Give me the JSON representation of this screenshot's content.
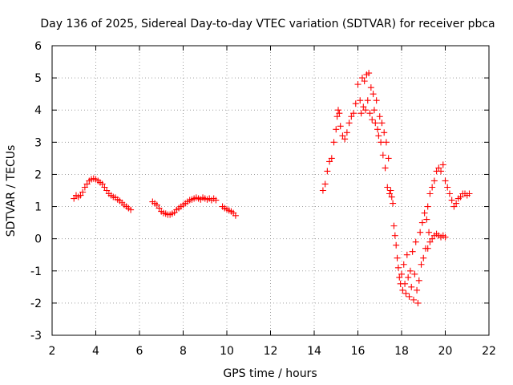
{
  "chart_data": {
    "type": "scatter",
    "title": "Day 136 of 2025, Sidereal Day-to-day VTEC variation (SDTVAR) for receiver pbca",
    "xlabel": "GPS time / hours",
    "ylabel": "SDTVAR / TECUs",
    "xlim": [
      2,
      22
    ],
    "ylim": [
      -3,
      6
    ],
    "xticks": [
      2,
      4,
      6,
      8,
      10,
      12,
      14,
      16,
      18,
      20,
      22
    ],
    "yticks": [
      -3,
      -2,
      -1,
      0,
      1,
      2,
      3,
      4,
      5,
      6
    ],
    "xtick_labels": [
      "2",
      "4",
      "6",
      "8",
      "10",
      "12",
      "14",
      "16",
      "18",
      "20",
      "22"
    ],
    "ytick_labels": [
      "-3",
      "-2",
      "-1",
      "0",
      "1",
      "2",
      "3",
      "4",
      "5",
      "6"
    ],
    "grid": true,
    "marker": "plus",
    "series": [
      {
        "name": "SDTVAR",
        "color": "#ff0000",
        "segments": [
          {
            "x": [
              3.0,
              3.1,
              3.2,
              3.3,
              3.4,
              3.5,
              3.6,
              3.7,
              3.8,
              3.9,
              4.0,
              4.1,
              4.2,
              4.3,
              4.4,
              4.5,
              4.6,
              4.7,
              4.8,
              4.9,
              5.0,
              5.1,
              5.2,
              5.3,
              5.4,
              5.5,
              5.6
            ],
            "y": [
              1.25,
              1.35,
              1.3,
              1.35,
              1.45,
              1.6,
              1.7,
              1.8,
              1.85,
              1.87,
              1.85,
              1.8,
              1.75,
              1.7,
              1.6,
              1.5,
              1.4,
              1.35,
              1.3,
              1.28,
              1.22,
              1.18,
              1.12,
              1.05,
              1.0,
              0.95,
              0.9
            ]
          },
          {
            "x": [
              6.6,
              6.7,
              6.8,
              6.9,
              7.0,
              7.1,
              7.2,
              7.3,
              7.4,
              7.5,
              7.6,
              7.7,
              7.8,
              7.9,
              8.0,
              8.1,
              8.2,
              8.3,
              8.4,
              8.5,
              8.6,
              8.7,
              8.8,
              8.9,
              9.0,
              9.1,
              9.2,
              9.3,
              9.4,
              9.5
            ],
            "y": [
              1.15,
              1.1,
              1.05,
              0.95,
              0.85,
              0.8,
              0.78,
              0.75,
              0.75,
              0.78,
              0.82,
              0.9,
              0.95,
              1.0,
              1.05,
              1.1,
              1.15,
              1.2,
              1.22,
              1.25,
              1.28,
              1.25,
              1.22,
              1.28,
              1.25,
              1.22,
              1.25,
              1.2,
              1.25,
              1.2
            ]
          },
          {
            "x": [
              9.8,
              9.9,
              10.0,
              10.1,
              10.2,
              10.3,
              10.4
            ],
            "y": [
              1.0,
              0.95,
              0.92,
              0.88,
              0.85,
              0.8,
              0.72
            ]
          },
          {
            "x": [
              14.4,
              14.5,
              14.6,
              14.7,
              14.8,
              14.9,
              15.0,
              15.05,
              15.1,
              15.15,
              15.2,
              15.3,
              15.4,
              15.5,
              15.6,
              15.7,
              15.8,
              15.9,
              16.0,
              16.1,
              16.15,
              16.2,
              16.25,
              16.3,
              16.35,
              16.4,
              16.45,
              16.5,
              16.55,
              16.6,
              16.65,
              16.7,
              16.75,
              16.8,
              16.85,
              16.9,
              16.95,
              17.0,
              17.05,
              17.1,
              17.15,
              17.2,
              17.25,
              17.3,
              17.35,
              17.4,
              17.45,
              17.5,
              17.55,
              17.6,
              17.65,
              17.7,
              17.75,
              17.8,
              17.85,
              17.9,
              17.95,
              18.0,
              18.05,
              18.1,
              18.15,
              18.2,
              18.25,
              18.3,
              18.35,
              18.4,
              18.45,
              18.5,
              18.55,
              18.6,
              18.65,
              18.7,
              18.75,
              18.8,
              18.85,
              18.9,
              18.95,
              19.0,
              19.05,
              19.1,
              19.15,
              19.2,
              19.25,
              19.3,
              19.4,
              19.5,
              19.6,
              19.7,
              19.8,
              19.9,
              20.0,
              20.1,
              20.2,
              20.3,
              20.4,
              20.5,
              20.6,
              20.7,
              20.8,
              20.9,
              21.0,
              21.1
            ],
            "y": [
              1.5,
              1.7,
              2.1,
              2.4,
              2.5,
              3.0,
              3.4,
              3.8,
              4.0,
              3.9,
              3.5,
              3.2,
              3.1,
              3.3,
              3.6,
              3.8,
              3.9,
              4.2,
              4.8,
              4.3,
              3.9,
              5.0,
              4.1,
              4.9,
              4.0,
              5.1,
              4.3,
              5.15,
              3.9,
              4.7,
              3.7,
              4.5,
              4.0,
              3.6,
              4.3,
              3.4,
              3.2,
              3.8,
              3.0,
              3.6,
              2.6,
              3.3,
              2.2,
              3.0,
              1.6,
              2.5,
              1.4,
              1.5,
              1.3,
              1.1,
              0.4,
              0.1,
              -0.2,
              -0.6,
              -0.9,
              -1.2,
              -1.4,
              -1.1,
              -1.6,
              -0.8,
              -1.4,
              -1.7,
              -0.5,
              -1.2,
              -1.8,
              -1.0,
              -1.5,
              -0.4,
              -1.9,
              -1.1,
              -0.1,
              -1.6,
              -2.0,
              -1.3,
              0.2,
              -0.8,
              0.5,
              -0.6,
              0.8,
              -0.3,
              0.6,
              1.0,
              0.2,
              1.4,
              1.6,
              1.8,
              2.1,
              2.2,
              2.1,
              2.3,
              1.8,
              1.6,
              1.4,
              1.2,
              1.0,
              1.1,
              1.25,
              1.3,
              1.4,
              1.4,
              1.35,
              1.4
            ]
          },
          {
            "x": [
              19.2,
              19.3,
              19.4,
              19.5,
              19.6,
              19.7,
              19.8,
              19.9,
              20.0
            ],
            "y": [
              -0.3,
              -0.1,
              0.0,
              0.1,
              0.15,
              0.1,
              0.05,
              0.1,
              0.05
            ]
          }
        ]
      }
    ]
  }
}
